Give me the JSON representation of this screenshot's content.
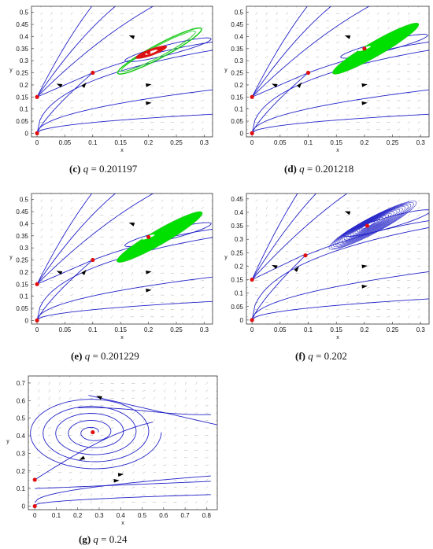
{
  "colors": {
    "trajectory": "#2323c8",
    "limit_cycle": "#22cc22",
    "limit_cycle_fill": "#00e000",
    "inner_region": "#dd1111",
    "equilibrium": "#e01010",
    "vector_field": "#aaaaaa",
    "frame": "#333333"
  },
  "chart_data": [
    {
      "id": "c",
      "type": "line",
      "label": "(c)",
      "q_symbol": "q",
      "q_value": "= 0.201197",
      "xlabel": "x",
      "ylabel": "y",
      "xlim": [
        -0.01,
        0.315
      ],
      "ylim": [
        -0.015,
        0.525
      ],
      "xticks": [
        "0",
        "0.05",
        "0.1",
        "0.15",
        "0.2",
        "0.25",
        "0.3"
      ],
      "yticks": [
        "0",
        "0.05",
        "0.1",
        "0.15",
        "0.2",
        "0.25",
        "0.3",
        "0.35",
        "0.4",
        "0.45",
        "0.5"
      ],
      "equilibria": [
        [
          0,
          0
        ],
        [
          0,
          0.15
        ],
        [
          0.1,
          0.25
        ],
        [
          0.2,
          0.335
        ]
      ],
      "feature": "green-ring"
    },
    {
      "id": "d",
      "type": "line",
      "label": "(d)",
      "q_symbol": "q",
      "q_value": "= 0.201218",
      "xlabel": "x",
      "ylabel": "y",
      "xlim": [
        -0.01,
        0.315
      ],
      "ylim": [
        -0.015,
        0.525
      ],
      "xticks": [
        "0",
        "0.05",
        "0.1",
        "0.15",
        "0.2",
        "0.25",
        "0.3"
      ],
      "yticks": [
        "0",
        "0.05",
        "0.1",
        "0.15",
        "0.2",
        "0.25",
        "0.3",
        "0.35",
        "0.4",
        "0.45",
        "0.5"
      ],
      "equilibria": [
        [
          0,
          0
        ],
        [
          0,
          0.15
        ],
        [
          0.1,
          0.25
        ],
        [
          0.2,
          0.35
        ]
      ],
      "feature": "green-filled"
    },
    {
      "id": "e",
      "type": "line",
      "label": "(e)",
      "q_symbol": "q",
      "q_value": "= 0.201229",
      "xlabel": "x",
      "ylabel": "y",
      "xlim": [
        -0.01,
        0.315
      ],
      "ylim": [
        -0.015,
        0.525
      ],
      "xticks": [
        "0",
        "0.05",
        "0.1",
        "0.15",
        "0.2",
        "0.25",
        "0.3"
      ],
      "yticks": [
        "0",
        "0.05",
        "0.1",
        "0.15",
        "0.2",
        "0.25",
        "0.3",
        "0.35",
        "0.4",
        "0.45",
        "0.5"
      ],
      "equilibria": [
        [
          0,
          0
        ],
        [
          0,
          0.15
        ],
        [
          0.1,
          0.25
        ],
        [
          0.2,
          0.345
        ]
      ],
      "feature": "green-filled"
    },
    {
      "id": "f",
      "type": "line",
      "label": "(f)",
      "q_symbol": "q",
      "q_value": "= 0.202",
      "xlabel": "x",
      "ylabel": "y",
      "xlim": [
        -0.01,
        0.315
      ],
      "ylim": [
        -0.015,
        0.47
      ],
      "xticks": [
        "0",
        "0.05",
        "0.1",
        "0.15",
        "0.2",
        "0.25",
        "0.3"
      ],
      "yticks": [
        "0",
        "0.05",
        "0.1",
        "0.15",
        "0.2",
        "0.25",
        "0.3",
        "0.35",
        "0.4",
        "0.45"
      ],
      "equilibria": [
        [
          0,
          0
        ],
        [
          0,
          0.15
        ],
        [
          0.095,
          0.24
        ],
        [
          0.205,
          0.35
        ]
      ],
      "feature": "blue-spiral"
    },
    {
      "id": "g",
      "type": "line",
      "label": "(g)",
      "q_symbol": "q",
      "q_value": "= 0.24",
      "xlabel": "x",
      "ylabel": "y",
      "xlim": [
        -0.03,
        0.85
      ],
      "ylim": [
        -0.02,
        0.74
      ],
      "xticks": [
        "0",
        "0.1",
        "0.2",
        "0.3",
        "0.4",
        "0.5",
        "0.6",
        "0.7",
        "0.8"
      ],
      "yticks": [
        "0",
        "0.1",
        "0.2",
        "0.3",
        "0.4",
        "0.5",
        "0.6",
        "0.7"
      ],
      "equilibria": [
        [
          0,
          0
        ],
        [
          0,
          0.15
        ],
        [
          0.27,
          0.42
        ]
      ],
      "feature": "big-spiral"
    }
  ]
}
